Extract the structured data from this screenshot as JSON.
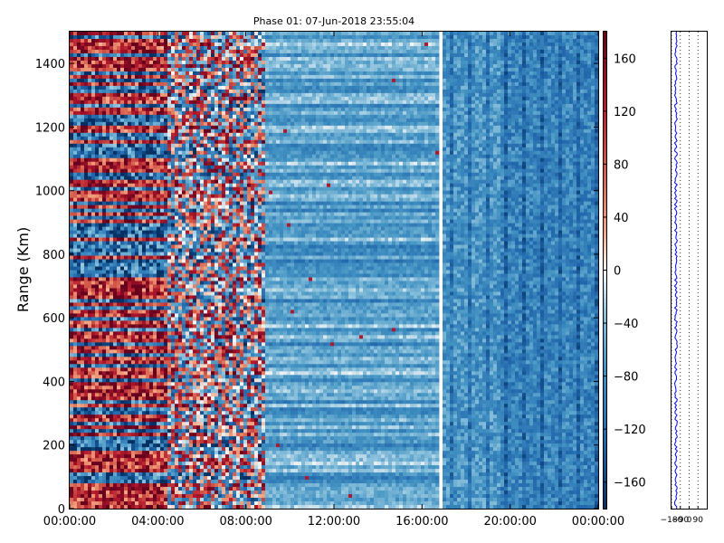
{
  "chart_data": [
    {
      "type": "heatmap",
      "title": "Phase 01: 07-Jun-2018 23:55:04",
      "xlabel": "",
      "ylabel": "Range (Km)",
      "x_ticks": [
        "00:00:00",
        "04:00:00",
        "08:00:00",
        "12:00:00",
        "16:00:00",
        "20:00:00",
        "00:00:00"
      ],
      "x_range_hours": [
        0,
        24
      ],
      "ylim": [
        0,
        1500
      ],
      "y_ticks": [
        0,
        200,
        400,
        600,
        800,
        1000,
        1200,
        1400
      ],
      "colorbar": {
        "range": [
          -180,
          180
        ],
        "ticks": [
          -160,
          -120,
          -80,
          -40,
          0,
          40,
          80,
          120,
          160
        ],
        "colormap": "RdBu_r"
      },
      "data_gap_hours": [
        16.8,
        17.0
      ]
    },
    {
      "type": "line",
      "title": "",
      "x_ticks": [
        "-180",
        "-90",
        "0",
        "90"
      ],
      "xlim": [
        -180,
        180
      ],
      "ylim": [
        0,
        1500
      ],
      "series_color": "#0000ff"
    }
  ]
}
